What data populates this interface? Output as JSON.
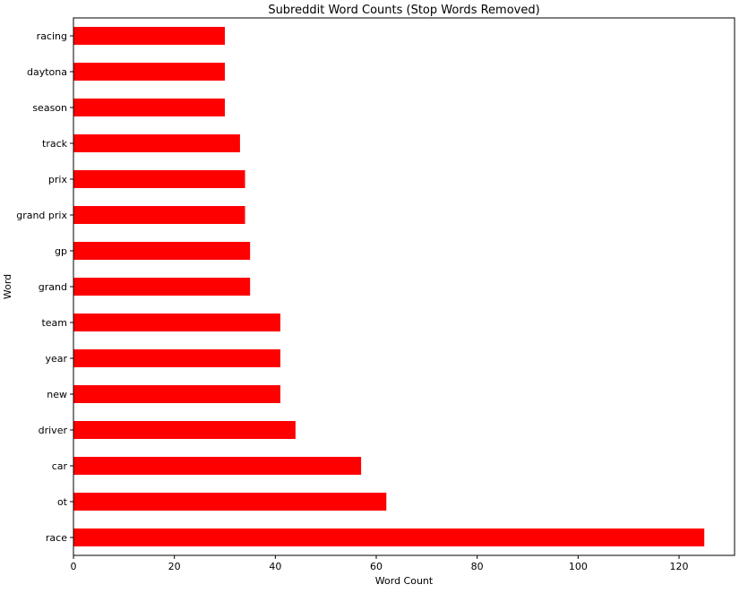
{
  "chart_data": {
    "type": "bar",
    "orientation": "horizontal",
    "title": "Subreddit Word Counts (Stop Words Removed)",
    "xlabel": "Word Count",
    "ylabel": "Word",
    "categories": [
      "race",
      "ot",
      "car",
      "driver",
      "new",
      "year",
      "team",
      "grand",
      "gp",
      "grand prix",
      "prix",
      "track",
      "season",
      "daytona",
      "racing"
    ],
    "values": [
      125,
      62,
      57,
      44,
      41,
      41,
      41,
      35,
      35,
      34,
      34,
      33,
      30,
      30,
      30
    ],
    "xlim": [
      0,
      131
    ],
    "xticks": [
      0,
      20,
      40,
      60,
      80,
      100,
      120
    ],
    "bar_color": "#ff0000",
    "grid": false,
    "legend": false
  }
}
